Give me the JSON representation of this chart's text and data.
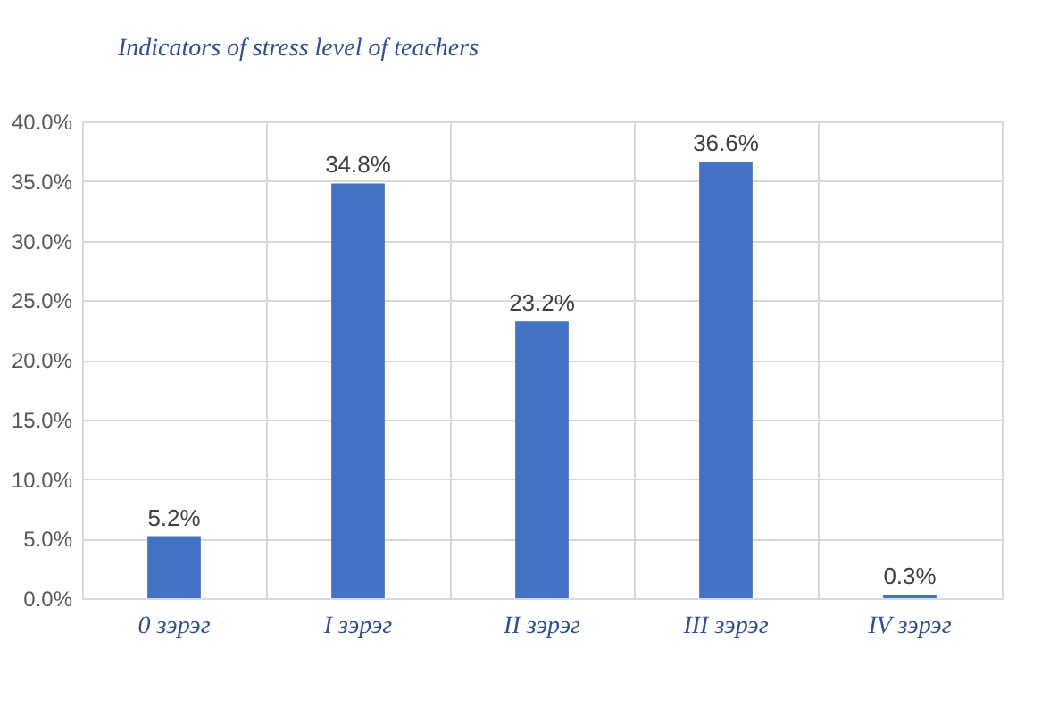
{
  "chart_data": {
    "type": "bar",
    "title": "Indicators of stress level of teachers",
    "categories": [
      "0 зэрэг",
      "I зэрэг",
      "II зэрэг",
      "III зэрэг",
      "IV зэрэг"
    ],
    "values": [
      5.2,
      34.8,
      23.2,
      36.6,
      0.3
    ],
    "value_labels": [
      "5.2%",
      "34.8%",
      "23.2%",
      "36.6%",
      "0.3%"
    ],
    "color": "#4472c4",
    "ylim": [
      0,
      40
    ],
    "yticks": [
      {
        "value": 0,
        "label": "0.0%"
      },
      {
        "value": 5,
        "label": "5.0%"
      },
      {
        "value": 10,
        "label": "10.0%"
      },
      {
        "value": 15,
        "label": "15.0%"
      },
      {
        "value": 20,
        "label": "20.0%"
      },
      {
        "value": 25,
        "label": "25.0%"
      },
      {
        "value": 30,
        "label": "30.0%"
      },
      {
        "value": 35,
        "label": "35.0%"
      },
      {
        "value": 40,
        "label": "40.0%"
      }
    ],
    "grid": true
  }
}
